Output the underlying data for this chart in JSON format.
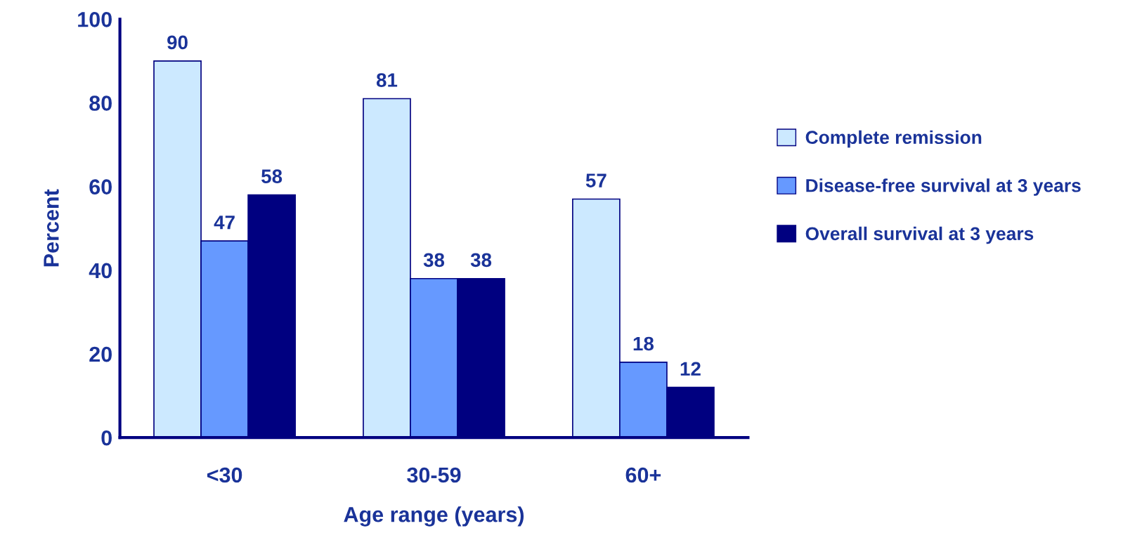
{
  "chart_data": {
    "type": "bar",
    "categories": [
      "<30",
      "30-59",
      "60+"
    ],
    "series": [
      {
        "name": "Complete remission",
        "color": "#cce9ff",
        "values": [
          90,
          81,
          57
        ]
      },
      {
        "name": "Disease-free survival at 3 years",
        "color": "#6699ff",
        "values": [
          47,
          38,
          18
        ]
      },
      {
        "name": "Overall survival at 3 years",
        "color": "#000080",
        "values": [
          58,
          38,
          12
        ]
      }
    ],
    "xlabel": "Age range (years)",
    "ylabel": "Percent",
    "ylim": [
      0,
      100
    ],
    "yticks": [
      0,
      20,
      40,
      60,
      80,
      100
    ],
    "data_labels": true,
    "grid": false,
    "legend": "right"
  }
}
